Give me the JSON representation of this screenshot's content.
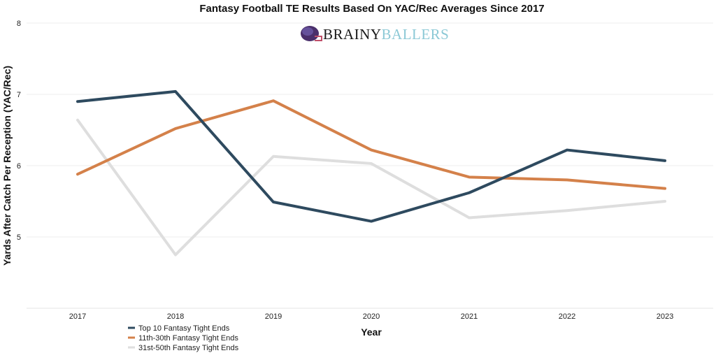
{
  "chart_data": {
    "type": "line",
    "title": "Fantasy Football TE Results Based On YAC/Rec Averages Since 2017",
    "xlabel": "Year",
    "ylabel": "Yards After Catch Per Reception (YAC/Rec)",
    "x": [
      "2017",
      "2018",
      "2019",
      "2020",
      "2021",
      "2022",
      "2023"
    ],
    "ylim": [
      4,
      8
    ],
    "yticks": [
      "5",
      "6",
      "7",
      "8"
    ],
    "grid": true,
    "legend_position": "bottom-left",
    "series": [
      {
        "name": "Top 10 Fantasy Tight Ends",
        "color": "#2e4a5f",
        "values": [
          6.9,
          7.04,
          5.49,
          5.22,
          5.62,
          6.22,
          6.07
        ]
      },
      {
        "name": "11th-30th Fantasy Tight Ends",
        "color": "#d4814a",
        "values": [
          5.88,
          6.52,
          6.91,
          6.22,
          5.84,
          5.8,
          5.68
        ]
      },
      {
        "name": "31st-50th Fantasy Tight Ends",
        "color": "#dedede",
        "values": [
          6.64,
          4.75,
          6.13,
          6.03,
          5.27,
          5.37,
          5.5
        ]
      }
    ]
  },
  "logo": {
    "text_dark": "BRAINY",
    "text_light": "BALLERS",
    "icon": "football-helmet-icon"
  }
}
